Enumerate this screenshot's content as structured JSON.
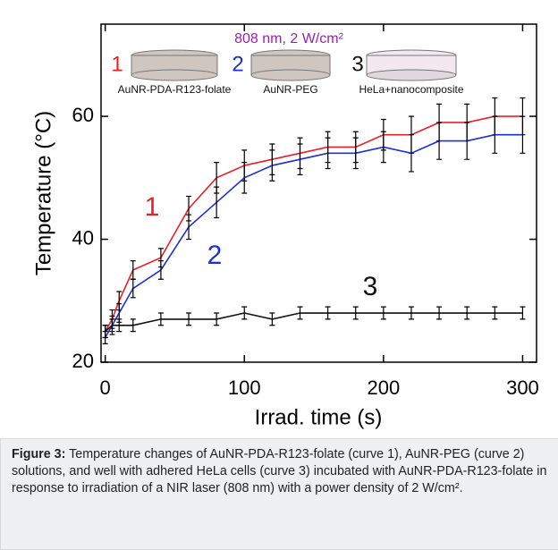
{
  "chart_data": {
    "type": "line",
    "x_label": "Irrad. time (s)",
    "y_label": "Temperature (°C)",
    "x": [
      0,
      5,
      10,
      20,
      40,
      60,
      80,
      100,
      120,
      140,
      160,
      180,
      200,
      220,
      240,
      260,
      280,
      300
    ],
    "series": [
      {
        "name": "1",
        "color": "#e8202a",
        "values": [
          25,
          27,
          30,
          35,
          37,
          45,
          50,
          52,
          53,
          54,
          55,
          55,
          57,
          57,
          59,
          59,
          60,
          60
        ],
        "errors": [
          1,
          1.5,
          1.5,
          1.5,
          1.5,
          2,
          2.5,
          2.5,
          2.5,
          2.5,
          2.5,
          2.5,
          2.5,
          3,
          3,
          3,
          3,
          3
        ]
      },
      {
        "name": "2",
        "color": "#1c2fd6",
        "values": [
          24,
          26,
          28,
          32,
          35,
          42,
          46,
          50,
          52,
          53,
          54,
          54,
          55,
          54,
          56,
          56,
          57,
          57
        ],
        "errors": [
          1,
          1.5,
          1.5,
          1.5,
          1.5,
          2,
          2.5,
          2.5,
          2.5,
          2.5,
          2.5,
          2.5,
          2.5,
          3,
          3,
          3,
          3,
          3
        ]
      },
      {
        "name": "3",
        "color": "#111111",
        "values": [
          25,
          26,
          26,
          26,
          27,
          27,
          27,
          28,
          27,
          28,
          28,
          28,
          28,
          28,
          28,
          28,
          28,
          28
        ],
        "errors": [
          1,
          1,
          1,
          1,
          1,
          1,
          1,
          1,
          1,
          1,
          1,
          1,
          1,
          1,
          1,
          1,
          1,
          1
        ]
      }
    ],
    "xlim": [
      -3,
      310
    ],
    "ylim": [
      20,
      75
    ],
    "xticks": [
      0,
      100,
      200,
      300
    ],
    "yticks": [
      20,
      40,
      60
    ],
    "grid": false,
    "annotations": [
      {
        "text": "808 nm, 2 W/cm²",
        "color": "#9b1fb8"
      },
      {
        "text": "AuNR-PDA-R123-folate",
        "color": "#111111"
      },
      {
        "text": "AuNR-PEG",
        "color": "#111111"
      },
      {
        "text": "HeLa+nanocomposite",
        "color": "#111111"
      }
    ]
  },
  "caption": {
    "label": "Figure 3:",
    "text": "Temperature changes of AuNR-PDA-R123-folate (curve 1), AuNR-PEG (curve 2) solutions, and well with adhered HeLa cells (curve 3) incubated with AuNR-PDA-R123-folate in response to irradiation of a NIR laser (808 nm) with a power density of 2 W/cm²."
  }
}
